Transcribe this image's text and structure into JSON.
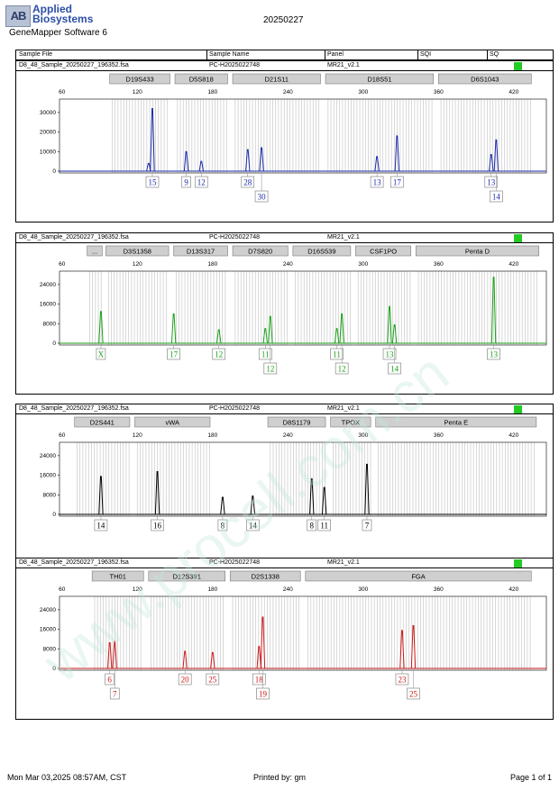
{
  "header": {
    "logo_mark": "AB",
    "brand_line1": "Applied",
    "brand_line2": "Biosystems",
    "software": "GeneMapper Software 6",
    "date": "20250227"
  },
  "table_header": {
    "sample_file": "Sample File",
    "sample_name": "Sample Name",
    "panel": "Panel",
    "sqi": "SQI",
    "sq": "SQ"
  },
  "panels": [
    {
      "file": "D8_48_Sample_20250227_196352.fsa",
      "sample": "PC-H2025022748",
      "panel": "MR21_v2.1",
      "color": "#1a2aa8",
      "yticks": [
        0,
        10000,
        20000,
        30000
      ],
      "ymax": 35000,
      "loci": [
        {
          "name": "D19S433",
          "start": 98,
          "end": 146
        },
        {
          "name": "D5S818",
          "start": 150,
          "end": 192
        },
        {
          "name": "D21S11",
          "start": 196,
          "end": 266
        },
        {
          "name": "D18S51",
          "start": 270,
          "end": 356
        },
        {
          "name": "D6S1043",
          "start": 360,
          "end": 434
        }
      ],
      "peaks": [
        {
          "x": 129,
          "h": 4000
        },
        {
          "x": 132,
          "h": 32000
        },
        {
          "x": 159,
          "h": 10000
        },
        {
          "x": 171,
          "h": 5000
        },
        {
          "x": 208,
          "h": 11000
        },
        {
          "x": 219,
          "h": 12000
        },
        {
          "x": 311,
          "h": 7500
        },
        {
          "x": 327,
          "h": 18000
        },
        {
          "x": 402,
          "h": 8500
        },
        {
          "x": 406,
          "h": 16000
        }
      ],
      "alleles": [
        {
          "x": 132,
          "row": 0,
          "label": "15"
        },
        {
          "x": 159,
          "row": 0,
          "label": "9"
        },
        {
          "x": 171,
          "row": 0,
          "label": "12"
        },
        {
          "x": 208,
          "row": 0,
          "label": "28"
        },
        {
          "x": 219,
          "row": 1,
          "label": "30"
        },
        {
          "x": 311,
          "row": 0,
          "label": "13"
        },
        {
          "x": 327,
          "row": 0,
          "label": "17"
        },
        {
          "x": 402,
          "row": 0,
          "label": "13"
        },
        {
          "x": 406,
          "row": 1,
          "label": "14"
        }
      ]
    },
    {
      "file": "D8_48_Sample_20250227_196352.fsa",
      "sample": "PC-H2025022748",
      "panel": "MR21_v2.1",
      "color": "#1aa01a",
      "yticks": [
        0,
        8000,
        16000,
        24000
      ],
      "ymax": 28000,
      "loci": [
        {
          "name": "...",
          "start": 80,
          "end": 92
        },
        {
          "name": "D3S1358",
          "start": 95,
          "end": 145
        },
        {
          "name": "D13S317",
          "start": 149,
          "end": 192
        },
        {
          "name": "D7S820",
          "start": 196,
          "end": 240
        },
        {
          "name": "D16S539",
          "start": 244,
          "end": 290
        },
        {
          "name": "CSF1PO",
          "start": 294,
          "end": 338
        },
        {
          "name": "Penta D",
          "start": 342,
          "end": 440
        }
      ],
      "peaks": [
        {
          "x": 91,
          "h": 13000
        },
        {
          "x": 149,
          "h": 12000
        },
        {
          "x": 185,
          "h": 5500
        },
        {
          "x": 222,
          "h": 6000
        },
        {
          "x": 226,
          "h": 11000
        },
        {
          "x": 279,
          "h": 6000
        },
        {
          "x": 283,
          "h": 12000
        },
        {
          "x": 321,
          "h": 15000
        },
        {
          "x": 325,
          "h": 7500
        },
        {
          "x": 404,
          "h": 27000
        }
      ],
      "alleles": [
        {
          "x": 91,
          "row": 0,
          "label": "X"
        },
        {
          "x": 149,
          "row": 0,
          "label": "17"
        },
        {
          "x": 185,
          "row": 0,
          "label": "12"
        },
        {
          "x": 222,
          "row": 0,
          "label": "11"
        },
        {
          "x": 226,
          "row": 1,
          "label": "12"
        },
        {
          "x": 279,
          "row": 0,
          "label": "11"
        },
        {
          "x": 283,
          "row": 1,
          "label": "12"
        },
        {
          "x": 321,
          "row": 0,
          "label": "13"
        },
        {
          "x": 325,
          "row": 1,
          "label": "14"
        },
        {
          "x": 404,
          "row": 0,
          "label": "13"
        }
      ]
    },
    {
      "file": "D8_48_Sample_20250227_196352.fsa",
      "sample": "PC-H2025022748",
      "panel": "MR21_v2.1",
      "color": "#000000",
      "yticks": [
        0,
        8000,
        16000,
        24000
      ],
      "ymax": 28000,
      "loci": [
        {
          "name": "D2S441",
          "start": 70,
          "end": 114
        },
        {
          "name": "vWA",
          "start": 118,
          "end": 178
        },
        {
          "name": "D8S1179",
          "start": 224,
          "end": 270
        },
        {
          "name": "TPOX",
          "start": 274,
          "end": 306
        },
        {
          "name": "Penta E",
          "start": 310,
          "end": 438
        }
      ],
      "peaks": [
        {
          "x": 91,
          "h": 15500
        },
        {
          "x": 136,
          "h": 17500
        },
        {
          "x": 188,
          "h": 7000
        },
        {
          "x": 212,
          "h": 7500
        },
        {
          "x": 259,
          "h": 14500
        },
        {
          "x": 269,
          "h": 11000
        },
        {
          "x": 303,
          "h": 20500
        }
      ],
      "alleles": [
        {
          "x": 91,
          "row": 0,
          "label": "14"
        },
        {
          "x": 136,
          "row": 0,
          "label": "16"
        },
        {
          "x": 188,
          "row": 0,
          "label": "8"
        },
        {
          "x": 212,
          "row": 0,
          "label": "14"
        },
        {
          "x": 259,
          "row": 0,
          "label": "8"
        },
        {
          "x": 269,
          "row": 0,
          "label": "11"
        },
        {
          "x": 303,
          "row": 0,
          "label": "7"
        }
      ]
    },
    {
      "file": "D8_48_Sample_20250227_196352.fsa",
      "sample": "PC-H2025022748",
      "panel": "MR21_v2.1",
      "color": "#cc1a1a",
      "yticks": [
        0,
        8000,
        16000,
        24000
      ],
      "ymax": 28000,
      "loci": [
        {
          "name": "TH01",
          "start": 84,
          "end": 125
        },
        {
          "name": "D12S391",
          "start": 129,
          "end": 190
        },
        {
          "name": "D2S1338",
          "start": 194,
          "end": 250
        },
        {
          "name": "FGA",
          "start": 254,
          "end": 434
        }
      ],
      "peaks": [
        {
          "x": 98,
          "h": 10500
        },
        {
          "x": 102,
          "h": 11000
        },
        {
          "x": 158,
          "h": 7000
        },
        {
          "x": 180,
          "h": 6500
        },
        {
          "x": 217,
          "h": 9000
        },
        {
          "x": 220,
          "h": 21000
        },
        {
          "x": 331,
          "h": 15500
        },
        {
          "x": 340,
          "h": 17500
        }
      ],
      "alleles": [
        {
          "x": 98,
          "row": 0,
          "label": "6"
        },
        {
          "x": 102,
          "row": 1,
          "label": "7"
        },
        {
          "x": 158,
          "row": 0,
          "label": "20"
        },
        {
          "x": 180,
          "row": 0,
          "label": "25"
        },
        {
          "x": 217,
          "row": 0,
          "label": "18"
        },
        {
          "x": 220,
          "row": 1,
          "label": "19"
        },
        {
          "x": 331,
          "row": 0,
          "label": "23"
        },
        {
          "x": 340,
          "row": 1,
          "label": "25"
        }
      ]
    }
  ],
  "xaxis": {
    "ticks": [
      60,
      120,
      180,
      240,
      300,
      360,
      420
    ],
    "min": 58,
    "max": 446
  },
  "footer": {
    "timestamp": "Mon Mar 03,2025 08:57AM, CST",
    "printed_by": "Printed by: gm",
    "page": "Page 1 of 1"
  },
  "watermark": "www.procell.com.cn"
}
